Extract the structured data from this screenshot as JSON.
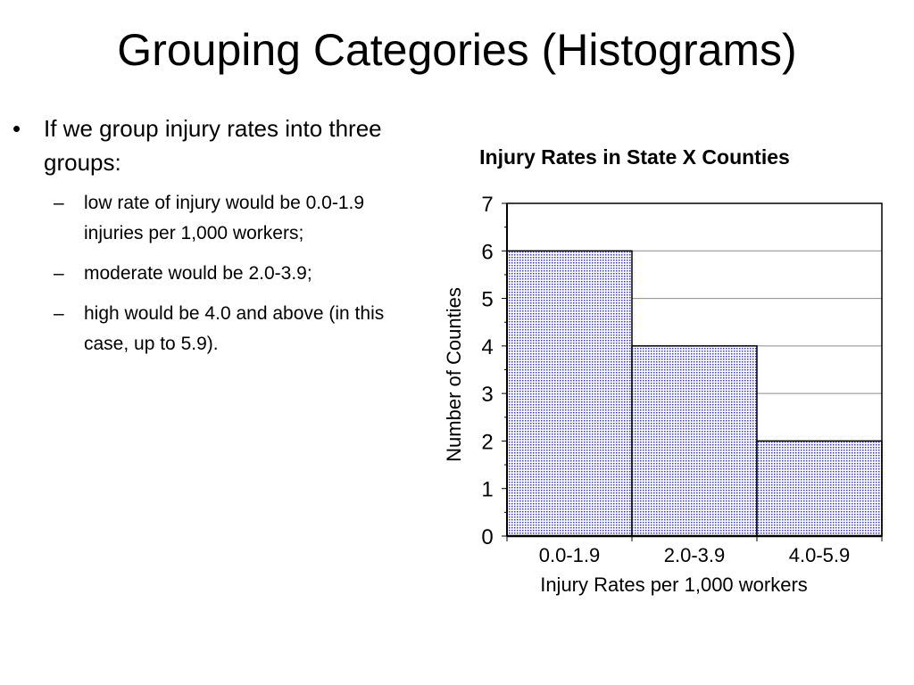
{
  "slide": {
    "title": "Grouping Categories (Histograms)",
    "bullet": "If we group injury rates into three groups:",
    "sub_bullets": [
      "low rate of injury would be 0.0-1.9 injuries per 1,000 workers;",
      "moderate would be 2.0-3.9;",
      "high would be 4.0 and above (in this case, up to 5.9)."
    ],
    "bullet_marker": "•",
    "sub_marker": "–"
  },
  "chart_data": {
    "type": "bar",
    "title": "Injury Rates in State X Counties",
    "xlabel": "Injury Rates per 1,000 workers",
    "ylabel": "Number of Counties",
    "categories": [
      "0.0-1.9",
      "2.0-3.9",
      "4.0-5.9"
    ],
    "values": [
      6,
      4,
      2
    ],
    "ylim": [
      0,
      7
    ],
    "yticks": [
      "0",
      "1",
      "2",
      "3",
      "4",
      "5",
      "6",
      "7"
    ],
    "grid": true,
    "legend": "none",
    "bar_fill_color": "#3a3ac8",
    "bar_border_color": "#000000"
  }
}
